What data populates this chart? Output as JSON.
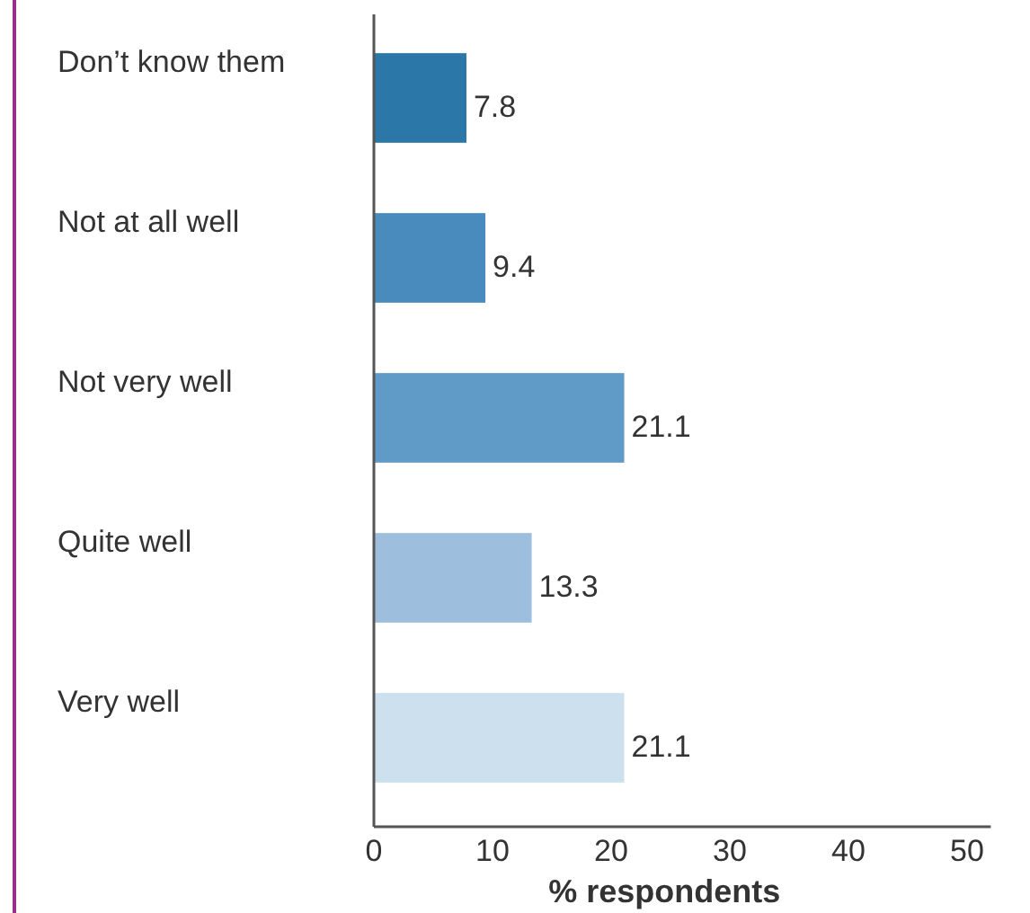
{
  "chart_data": {
    "type": "bar",
    "orientation": "horizontal",
    "categories": [
      "Don’t know them",
      "Not at all well",
      "Not very well",
      "Quite well",
      "Very well"
    ],
    "values": [
      7.8,
      9.4,
      21.1,
      13.3,
      21.1
    ],
    "colors": [
      "#2a77a8",
      "#4a8bbd",
      "#5f9bc6",
      "#9dbfdd",
      "#cde0ee"
    ],
    "xlim": [
      0,
      52
    ],
    "xticks": [
      0,
      10,
      20,
      30,
      40,
      50
    ],
    "xlabel": "% respondents",
    "data_labels": true
  }
}
